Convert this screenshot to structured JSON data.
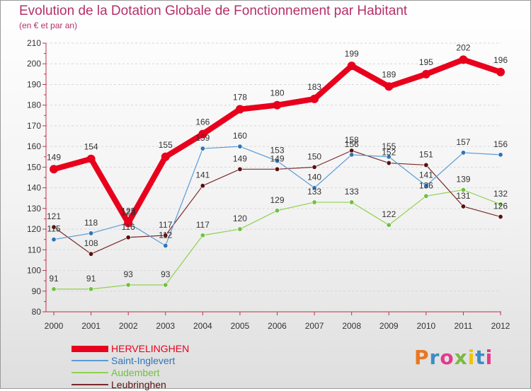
{
  "title": "Evolution de la Dotation Globale de Fonctionnement par Habitant",
  "subtitle": "(en € et par an)",
  "logo_text": "Proxiti",
  "colors": {
    "title": "#b5306a",
    "series": [
      "#e8001c",
      "#5b9bd5",
      "#92d050",
      "#7b2a2a"
    ],
    "markers": [
      "#e8001c",
      "#2e75b6",
      "#70c040",
      "#5a1010"
    ],
    "logo": [
      "#e87722",
      "#3c8dc5",
      "#e23a8c",
      "#7cb940",
      "#f2c200",
      "#3c8dc5",
      "#e23a8c"
    ]
  },
  "chart_data": {
    "type": "line",
    "x": [
      "2000",
      "2001",
      "2002",
      "2003",
      "2004",
      "2005",
      "2006",
      "2007",
      "2008",
      "2009",
      "2010",
      "2011",
      "2012"
    ],
    "ylim": [
      80,
      210
    ],
    "yticks": [
      80,
      90,
      100,
      110,
      120,
      130,
      140,
      150,
      160,
      170,
      180,
      190,
      200,
      210
    ],
    "grid": "horizontal",
    "legend_position": "bottom-left",
    "series": [
      {
        "name": "HERVELINGHEN",
        "values": [
          149,
          154,
          123,
          155,
          166,
          178,
          180,
          183,
          199,
          189,
          195,
          202,
          196
        ]
      },
      {
        "name": "Saint-Inglevert",
        "values": [
          115,
          118,
          123,
          112,
          159,
          160,
          153,
          140,
          156,
          155,
          141,
          157,
          156
        ]
      },
      {
        "name": "Audembert",
        "values": [
          91,
          91,
          93,
          93,
          117,
          120,
          129,
          133,
          133,
          122,
          136,
          139,
          132
        ]
      },
      {
        "name": "Leubringhen",
        "values": [
          121,
          108,
          116,
          117,
          141,
          149,
          149,
          150,
          158,
          152,
          151,
          131,
          126
        ]
      }
    ]
  }
}
